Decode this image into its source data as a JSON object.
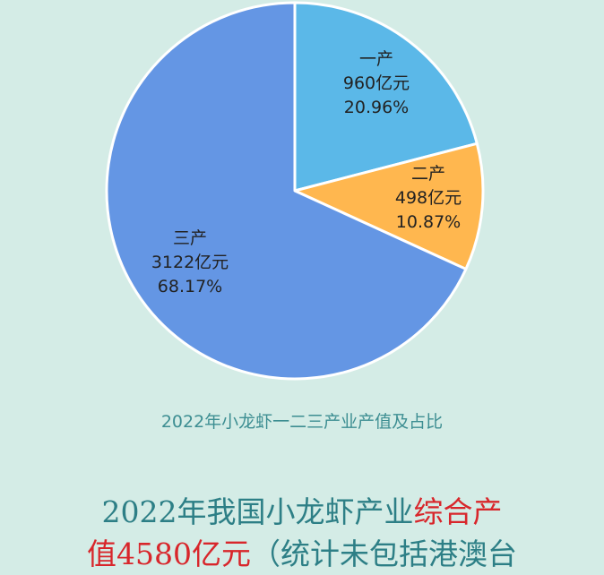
{
  "chart_data": {
    "type": "pie",
    "title": "2022年小龙虾一二三产业产值及占比",
    "slices": [
      {
        "label": "一产",
        "value": 960,
        "value_text": "960亿元",
        "percent_text": "20.96%",
        "color": "#5bb8e8"
      },
      {
        "label": "二产",
        "value": 498,
        "value_text": "498亿元",
        "percent_text": "10.87%",
        "color": "#ffb74f"
      },
      {
        "label": "三产",
        "value": 3122,
        "value_text": "3122亿元",
        "percent_text": "68.17%",
        "color": "#6496e4"
      }
    ],
    "start_angle_deg": 0,
    "direction": "clockwise",
    "border_color": "#ffffff"
  },
  "headline": {
    "line1_a": "2022年我国小龙虾产业",
    "line1_b": "综合产",
    "line2_a": "值4580亿元",
    "line2_b": "（统计未包括港澳台"
  },
  "colors": {
    "background": "#d4ece6",
    "caption": "#3d8e92",
    "headline_teal": "#2d7f86",
    "headline_red": "#d8262b"
  }
}
